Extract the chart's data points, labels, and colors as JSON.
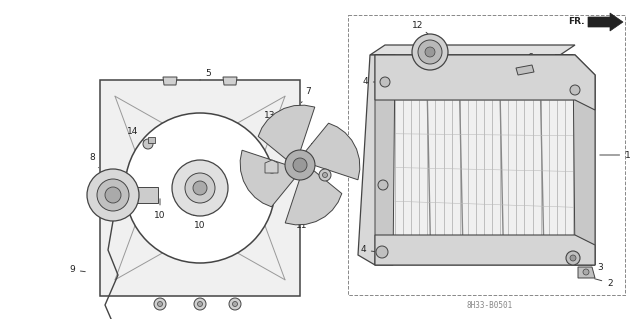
{
  "bg_color": "#ffffff",
  "line_color": "#444444",
  "text_color": "#222222",
  "watermark": "8H33-B0501",
  "figsize": [
    6.4,
    3.19
  ],
  "dpi": 100
}
